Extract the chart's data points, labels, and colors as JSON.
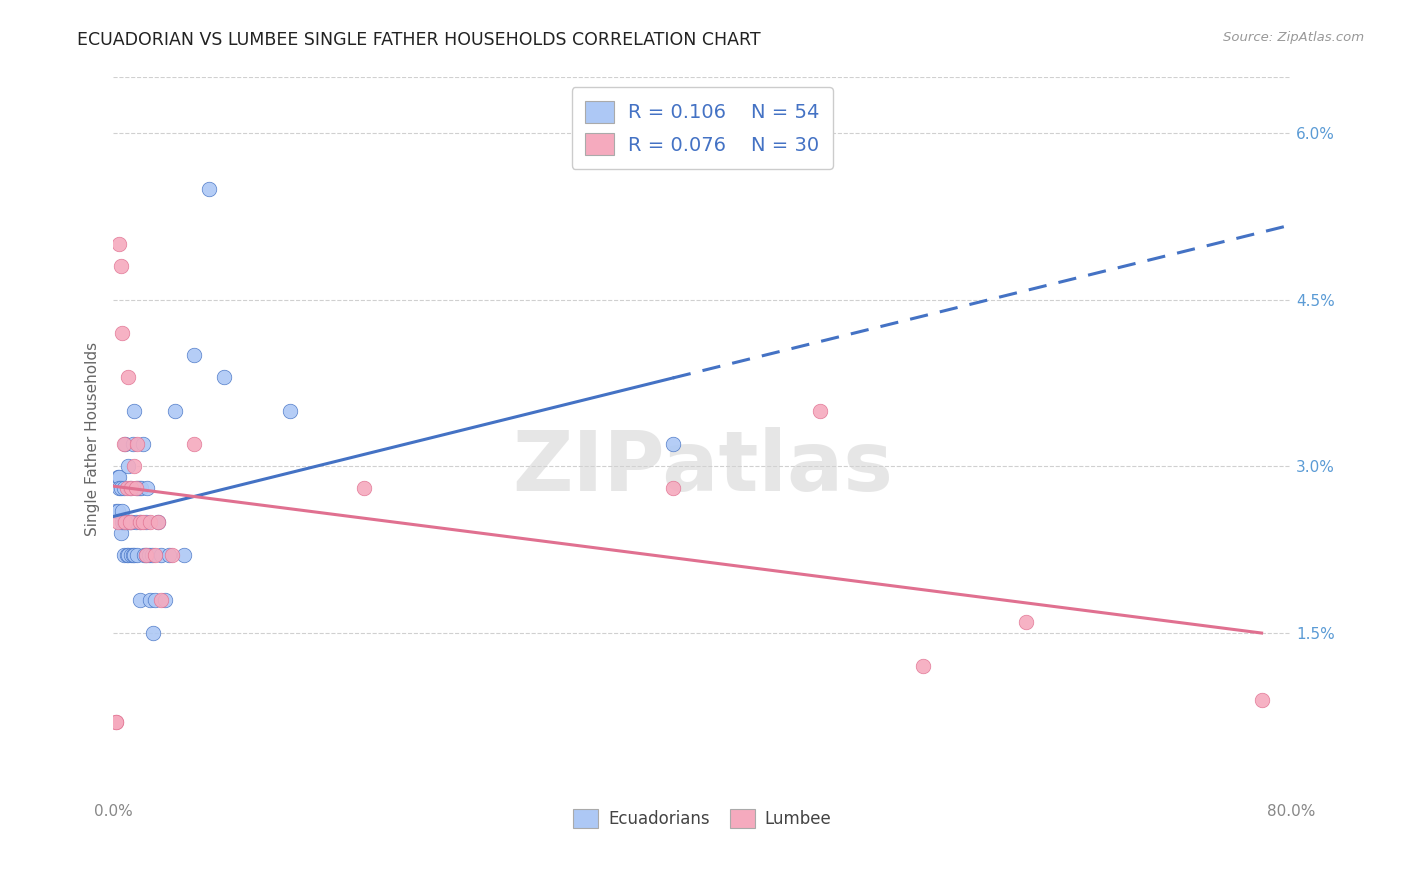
{
  "title": "ECUADORIAN VS LUMBEE SINGLE FATHER HOUSEHOLDS CORRELATION CHART",
  "source": "Source: ZipAtlas.com",
  "ylabel": "Single Father Households",
  "xlim": [
    0.0,
    0.8
  ],
  "ylim": [
    0.0,
    0.065
  ],
  "y_ticks": [
    0.0,
    0.015,
    0.03,
    0.045,
    0.06
  ],
  "y_tick_labels_right": [
    "",
    "1.5%",
    "3.0%",
    "4.5%",
    "6.0%"
  ],
  "x_ticks": [
    0.0,
    0.8
  ],
  "x_tick_labels": [
    "0.0%",
    "80.0%"
  ],
  "legend_r1": "0.106",
  "legend_n1": "54",
  "legend_r2": "0.076",
  "legend_n2": "30",
  "ecuadorians_color": "#adc8f5",
  "lumbee_color": "#f5aabe",
  "line_blue": "#4472c4",
  "line_pink": "#e07090",
  "watermark": "ZIPatlas",
  "ecuadorians_x": [
    0.002,
    0.003,
    0.003,
    0.004,
    0.004,
    0.005,
    0.005,
    0.006,
    0.006,
    0.007,
    0.007,
    0.007,
    0.008,
    0.009,
    0.009,
    0.01,
    0.01,
    0.01,
    0.011,
    0.011,
    0.012,
    0.012,
    0.013,
    0.013,
    0.014,
    0.014,
    0.015,
    0.016,
    0.016,
    0.017,
    0.018,
    0.018,
    0.019,
    0.02,
    0.021,
    0.022,
    0.022,
    0.023,
    0.024,
    0.025,
    0.026,
    0.027,
    0.028,
    0.03,
    0.032,
    0.035,
    0.038,
    0.042,
    0.048,
    0.055,
    0.065,
    0.075,
    0.12,
    0.38
  ],
  "ecuadorians_y": [
    0.026,
    0.029,
    0.026,
    0.029,
    0.028,
    0.028,
    0.024,
    0.025,
    0.026,
    0.022,
    0.025,
    0.028,
    0.032,
    0.025,
    0.022,
    0.03,
    0.022,
    0.025,
    0.028,
    0.025,
    0.025,
    0.022,
    0.022,
    0.032,
    0.022,
    0.035,
    0.025,
    0.022,
    0.028,
    0.028,
    0.018,
    0.025,
    0.028,
    0.032,
    0.022,
    0.022,
    0.025,
    0.028,
    0.022,
    0.018,
    0.022,
    0.015,
    0.018,
    0.025,
    0.022,
    0.018,
    0.022,
    0.035,
    0.022,
    0.04,
    0.055,
    0.038,
    0.035,
    0.032
  ],
  "lumbee_x": [
    0.002,
    0.002,
    0.003,
    0.004,
    0.005,
    0.006,
    0.007,
    0.008,
    0.009,
    0.01,
    0.011,
    0.012,
    0.014,
    0.015,
    0.016,
    0.018,
    0.02,
    0.022,
    0.025,
    0.028,
    0.03,
    0.032,
    0.04,
    0.055,
    0.17,
    0.38,
    0.48,
    0.55,
    0.62,
    0.78
  ],
  "lumbee_y": [
    0.007,
    0.007,
    0.025,
    0.05,
    0.048,
    0.042,
    0.032,
    0.025,
    0.028,
    0.038,
    0.025,
    0.028,
    0.03,
    0.028,
    0.032,
    0.025,
    0.025,
    0.022,
    0.025,
    0.022,
    0.025,
    0.018,
    0.022,
    0.032,
    0.028,
    0.028,
    0.035,
    0.012,
    0.016,
    0.009
  ],
  "background_color": "#ffffff",
  "grid_color": "#d0d0d0"
}
